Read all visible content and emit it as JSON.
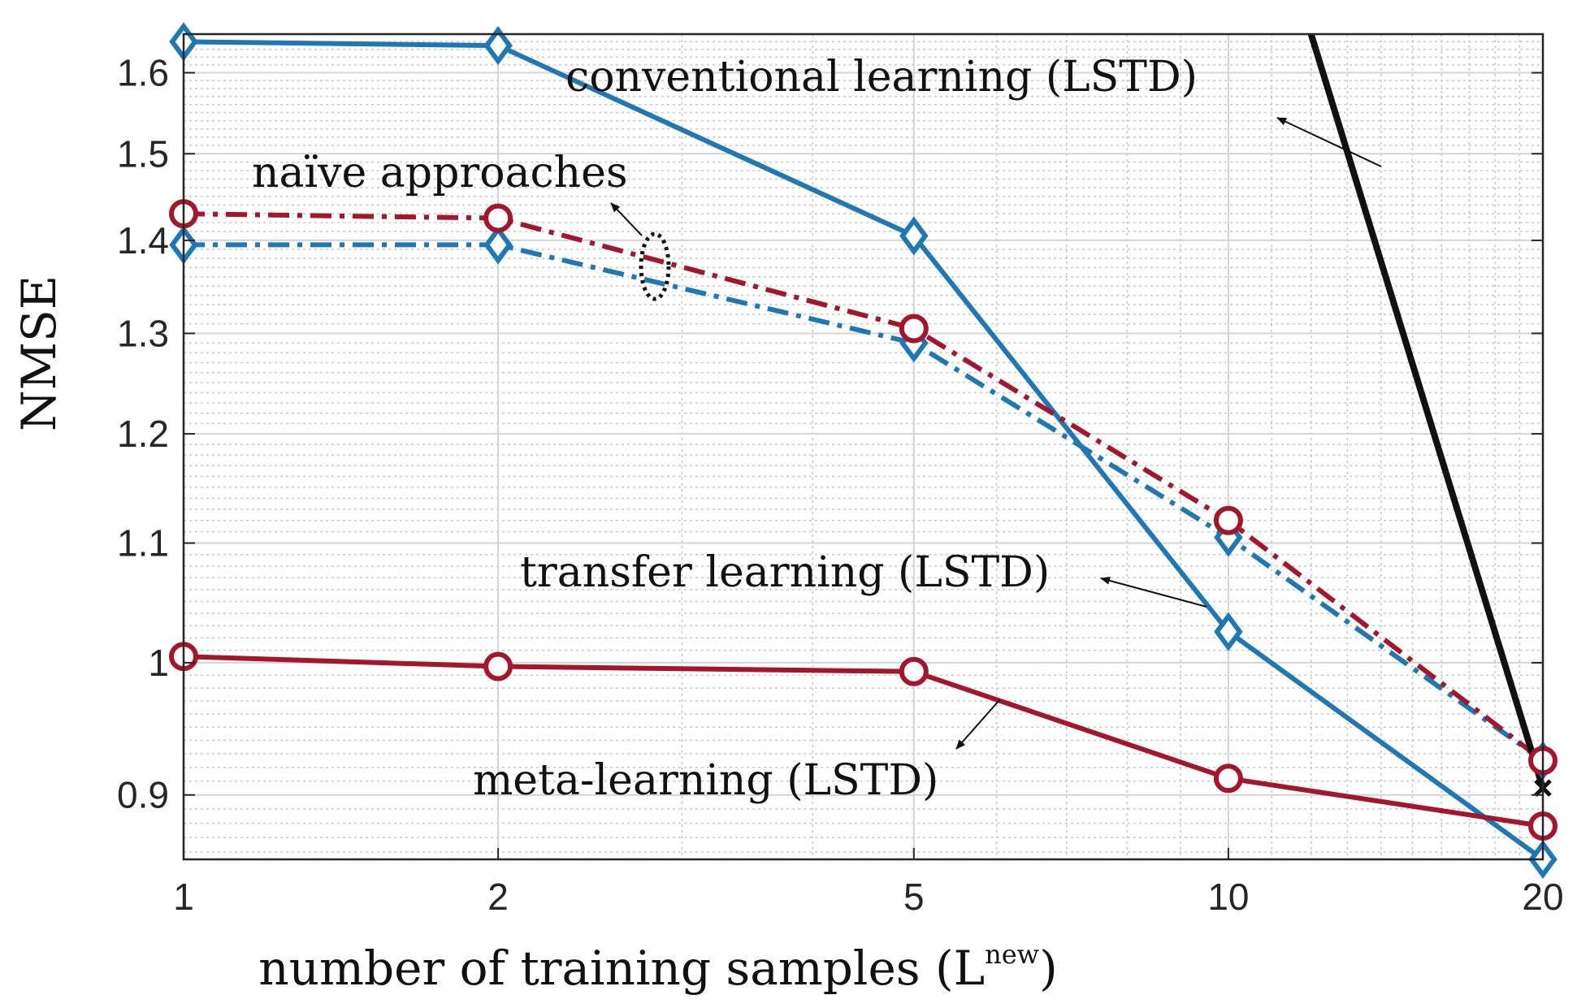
{
  "chart_data": {
    "type": "line",
    "xscale": "log",
    "yscale": "log",
    "x": [
      1,
      2,
      5,
      10,
      20
    ],
    "xticks": [
      "1",
      "2",
      "5",
      "10",
      "20"
    ],
    "yticks": [
      "0.9",
      "1",
      "1.1",
      "1.2",
      "1.3",
      "1.4",
      "1.5",
      "1.6"
    ],
    "xlabel": "number of training samples (L",
    "xlabel_sup": "new",
    "xlabel_close": ")",
    "ylabel": "NMSE",
    "xlim": [
      1,
      20
    ],
    "ylim": [
      0.855,
      1.65
    ],
    "grid": true,
    "series": [
      {
        "key": "transfer",
        "values": [
          1.64,
          1.635,
          1.405,
          1.025,
          0.855
        ],
        "color": "#1f77b4",
        "dash": "solid",
        "marker": "diamond"
      },
      {
        "key": "naive_blue",
        "values": [
          1.395,
          1.395,
          1.29,
          1.105,
          0.925
        ],
        "color": "#1f77b4",
        "dash": "dashdot",
        "marker": "diamond"
      },
      {
        "key": "naive_red",
        "values": [
          1.43,
          1.425,
          1.305,
          1.12,
          0.925
        ],
        "color": "#a3162b",
        "dash": "dashdot",
        "marker": "circle"
      },
      {
        "key": "meta",
        "values": [
          1.005,
          0.997,
          0.993,
          0.912,
          0.878
        ],
        "color": "#a3162b",
        "dash": "solid",
        "marker": "circle"
      },
      {
        "key": "conventional",
        "x": [
          12,
          20
        ],
        "values": [
          1.65,
          0.905
        ],
        "color": "#111111",
        "dash": "solid",
        "marker": "none",
        "end_marker": "x"
      }
    ],
    "annotations": [
      {
        "key": "conventional",
        "text": "conventional learning (LSTD)"
      },
      {
        "key": "naive",
        "text": "naïve approaches"
      },
      {
        "key": "transfer",
        "text": "transfer learning (LSTD)"
      },
      {
        "key": "meta",
        "text": "meta-learning (LSTD)"
      }
    ]
  }
}
